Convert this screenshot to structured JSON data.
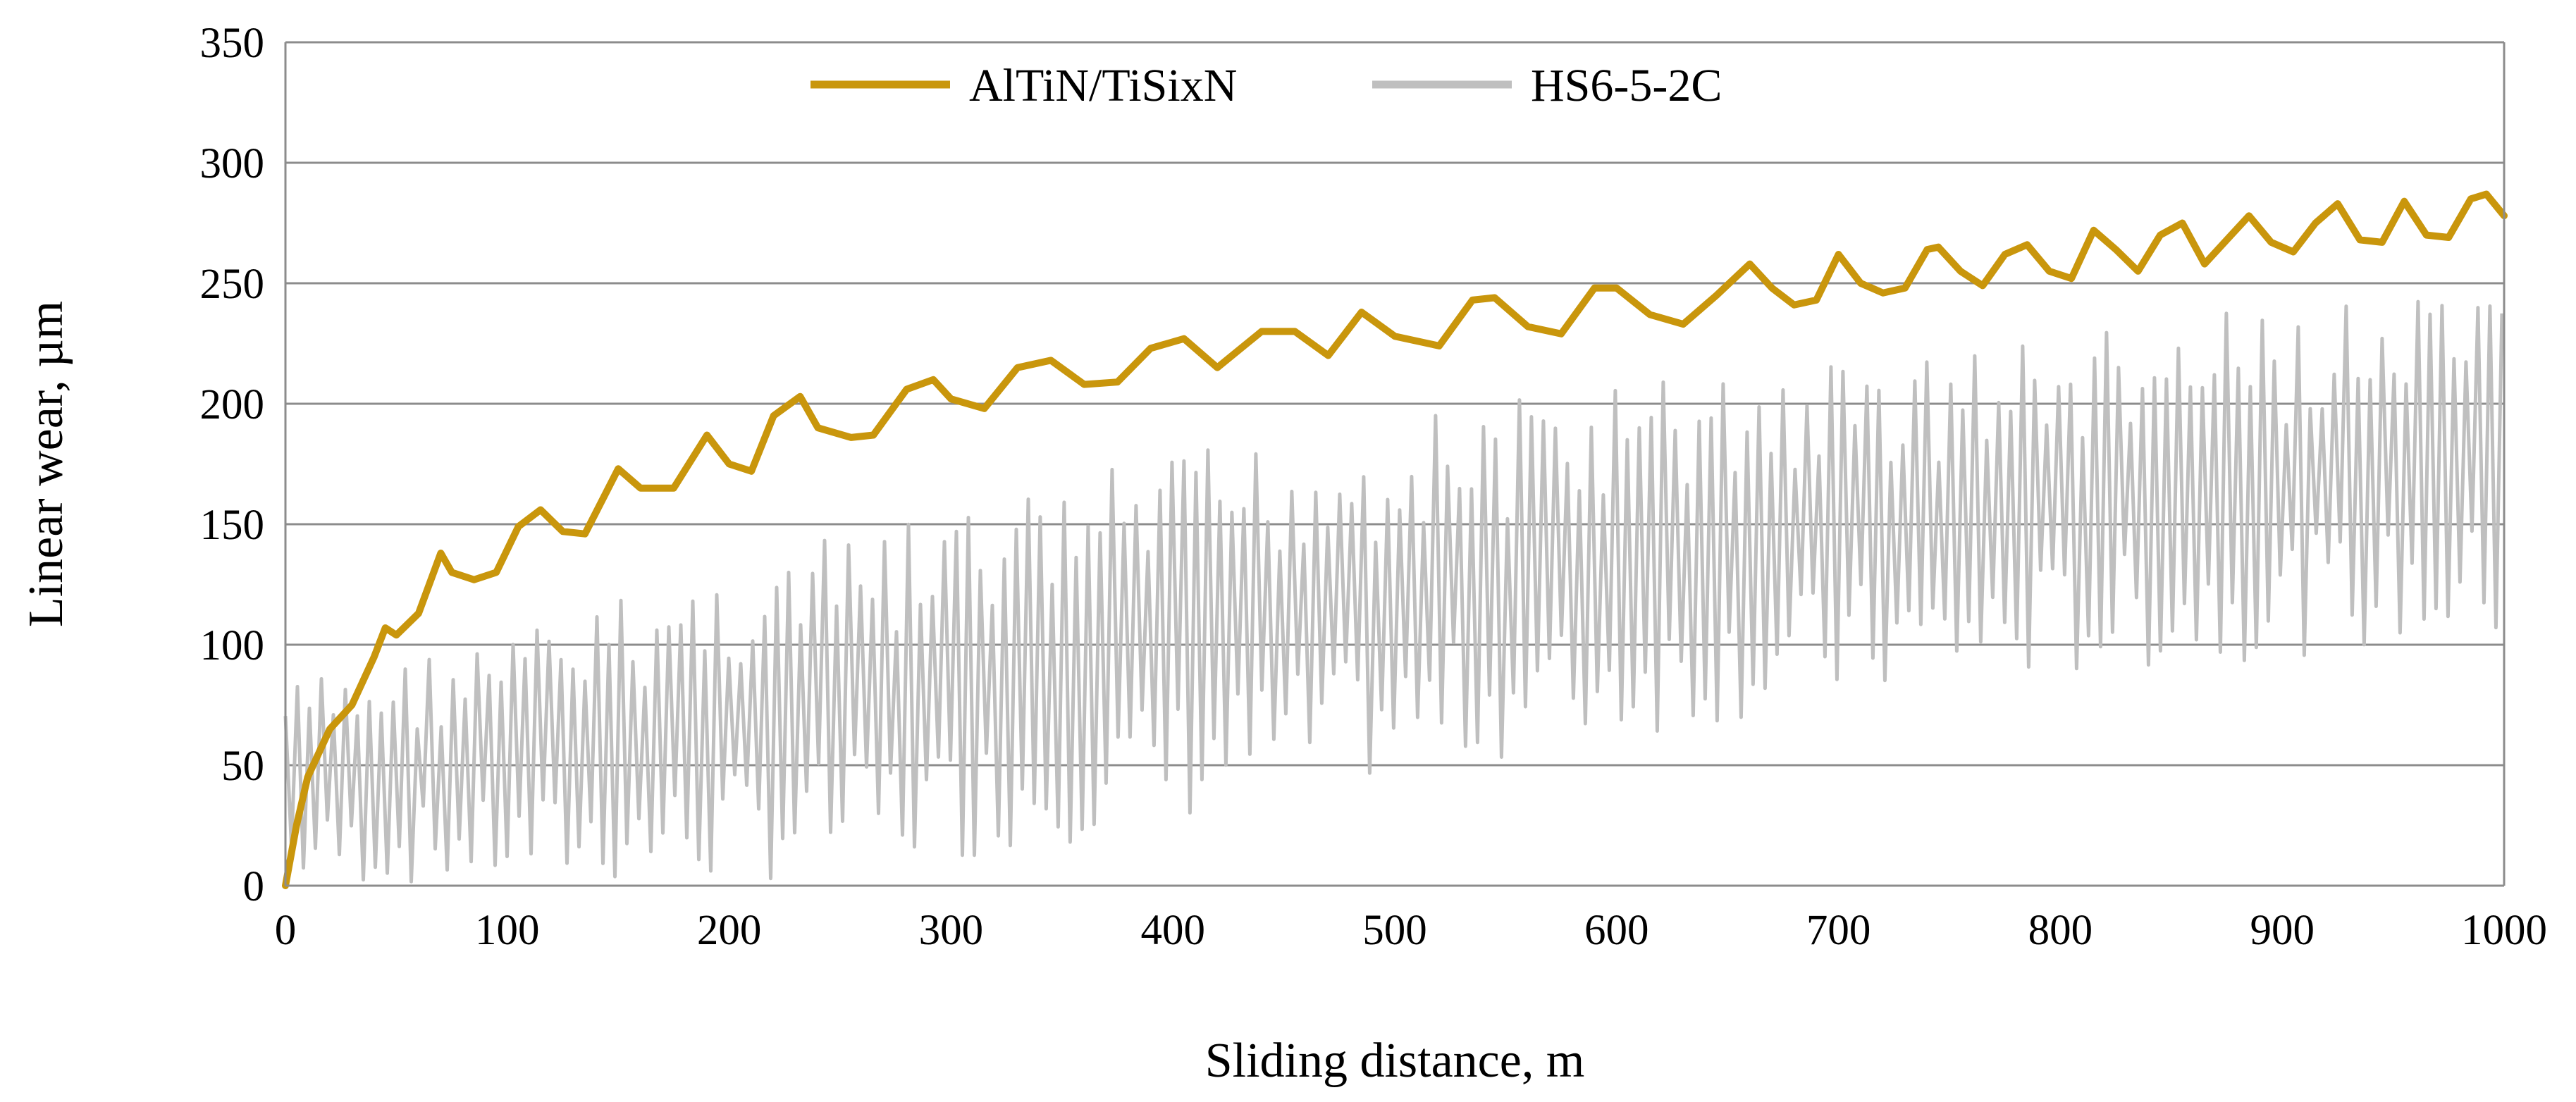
{
  "chart_data": {
    "type": "line",
    "title": "",
    "xlabel": "Sliding distance, m",
    "ylabel": "Linear wear, µm",
    "xlim": [
      0,
      1000
    ],
    "ylim": [
      0,
      350
    ],
    "x_ticks": [
      0,
      100,
      200,
      300,
      400,
      500,
      600,
      700,
      800,
      900,
      1000
    ],
    "y_ticks": [
      0,
      50,
      100,
      150,
      200,
      250,
      300,
      350
    ],
    "x_tick_labels": [
      "0",
      "100",
      "200",
      "300",
      "400",
      "500",
      "600",
      "700",
      "800",
      "900",
      "1000"
    ],
    "y_tick_labels": [
      "0",
      "50",
      "100",
      "150",
      "200",
      "250",
      "300",
      "350"
    ],
    "grid": "horizontal",
    "legend_position": "top-center",
    "series": [
      {
        "name": "AlTiN/TiSixN",
        "color": "#C9960C",
        "style": "solid-thick",
        "x": [
          0,
          5,
          10,
          20,
          30,
          40,
          45,
          50,
          60,
          70,
          75,
          85,
          95,
          105,
          115,
          125,
          135,
          150,
          160,
          175,
          190,
          200,
          210,
          220,
          232,
          240,
          255,
          265,
          280,
          292,
          300,
          315,
          330,
          345,
          360,
          375,
          390,
          405,
          420,
          440,
          455,
          470,
          485,
          500,
          520,
          535,
          545,
          560,
          575,
          590,
          600,
          615,
          630,
          645,
          660,
          670,
          680,
          690,
          700,
          710,
          720,
          730,
          740,
          745,
          755,
          765,
          775,
          785,
          795,
          805,
          815,
          825,
          835,
          845,
          855,
          865,
          875,
          885,
          895,
          905,
          915,
          925,
          935,
          945,
          955,
          965,
          975,
          985,
          992,
          1000
        ],
        "y": [
          0,
          25,
          45,
          65,
          75,
          95,
          107,
          104,
          113,
          138,
          130,
          127,
          130,
          149,
          156,
          147,
          146,
          173,
          165,
          165,
          187,
          175,
          172,
          195,
          203,
          190,
          186,
          187,
          206,
          210,
          202,
          198,
          215,
          218,
          208,
          209,
          223,
          227,
          215,
          230,
          230,
          220,
          238,
          228,
          224,
          243,
          244,
          232,
          229,
          248,
          248,
          237,
          233,
          245,
          258,
          248,
          241,
          243,
          262,
          250,
          246,
          248,
          264,
          265,
          255,
          249,
          262,
          266,
          255,
          252,
          272,
          264,
          255,
          270,
          275,
          258,
          268,
          278,
          267,
          263,
          275,
          283,
          268,
          267,
          284,
          270,
          269,
          285,
          287,
          278
        ]
      },
      {
        "name": "HS6-5-2C",
        "color": "#BFBFBF",
        "style": "dense-oscillation",
        "x": [
          0,
          100,
          200,
          300,
          400,
          500,
          600,
          700,
          800,
          900,
          1000
        ],
        "y_upper": [
          85,
          105,
          135,
          155,
          180,
          195,
          210,
          220,
          230,
          240,
          245
        ],
        "y_lower": [
          0,
          0,
          0,
          10,
          25,
          45,
          60,
          75,
          85,
          95,
          100
        ],
        "cycle_m": 5.4
      }
    ]
  }
}
